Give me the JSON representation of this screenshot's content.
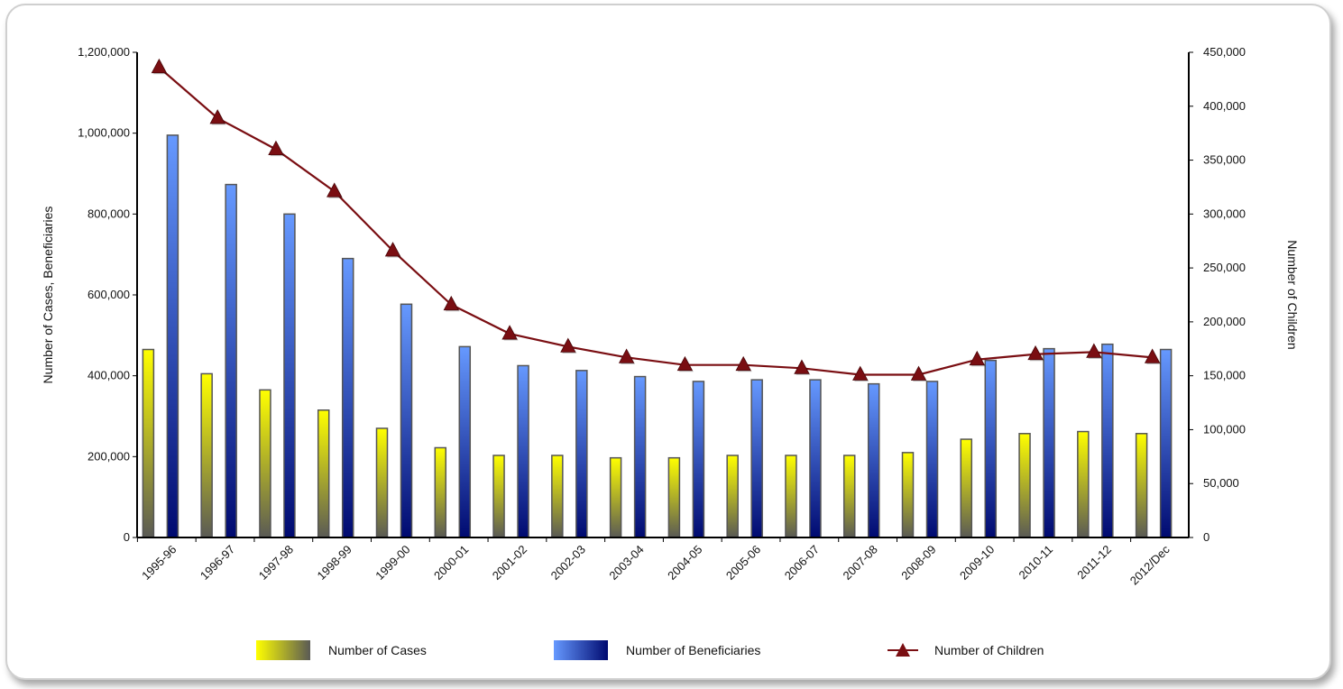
{
  "chart_data": {
    "type": "bar",
    "categories": [
      "1995-96",
      "1996-97",
      "1997-98",
      "1998-99",
      "1999-00",
      "2000-01",
      "2001-02",
      "2002-03",
      "2003-04",
      "2004-05",
      "2005-06",
      "2006-07",
      "2007-08",
      "2008-09",
      "2009-10",
      "2010-11",
      "2011-12",
      "2012/Dec"
    ],
    "series": [
      {
        "name": "Number of Cases",
        "kind": "bar",
        "axis": "left",
        "color": "#e8e010",
        "values": [
          465000,
          405000,
          365000,
          315000,
          270000,
          222000,
          203000,
          203000,
          197000,
          197000,
          203000,
          203000,
          203000,
          210000,
          243000,
          257000,
          262000,
          257000
        ]
      },
      {
        "name": "Number of Beneficiaries",
        "kind": "bar",
        "axis": "left",
        "color": "#4a78e0",
        "values": [
          995000,
          873000,
          800000,
          690000,
          577000,
          472000,
          425000,
          413000,
          398000,
          386000,
          390000,
          390000,
          380000,
          386000,
          438000,
          467000,
          478000,
          465000
        ]
      },
      {
        "name": "Number of Children",
        "kind": "line",
        "axis": "right",
        "color": "#7a0e12",
        "values": [
          436000,
          389000,
          360000,
          321000,
          266000,
          216000,
          189000,
          177000,
          167000,
          160000,
          160000,
          157000,
          151000,
          151000,
          165000,
          170000,
          172000,
          167000
        ]
      }
    ],
    "left_axis": {
      "label": "Number of Cases, Beneficiaries",
      "ylim": [
        0,
        1200000
      ],
      "ticks": [
        0,
        200000,
        400000,
        600000,
        800000,
        1000000,
        1200000
      ],
      "tick_labels": [
        "0",
        "200,000",
        "400,000",
        "600,000",
        "800,000",
        "1,000,000",
        "1,200,000"
      ]
    },
    "right_axis": {
      "label": "Number of Children",
      "ylim": [
        0,
        450000
      ],
      "ticks": [
        0,
        50000,
        100000,
        150000,
        200000,
        250000,
        300000,
        350000,
        400000,
        450000
      ],
      "tick_labels": [
        "0",
        "50,000",
        "100,000",
        "150,000",
        "200,000",
        "250,000",
        "300,000",
        "350,000",
        "400,000",
        "450,000"
      ]
    },
    "legend_position": "bottom",
    "grid": false
  }
}
